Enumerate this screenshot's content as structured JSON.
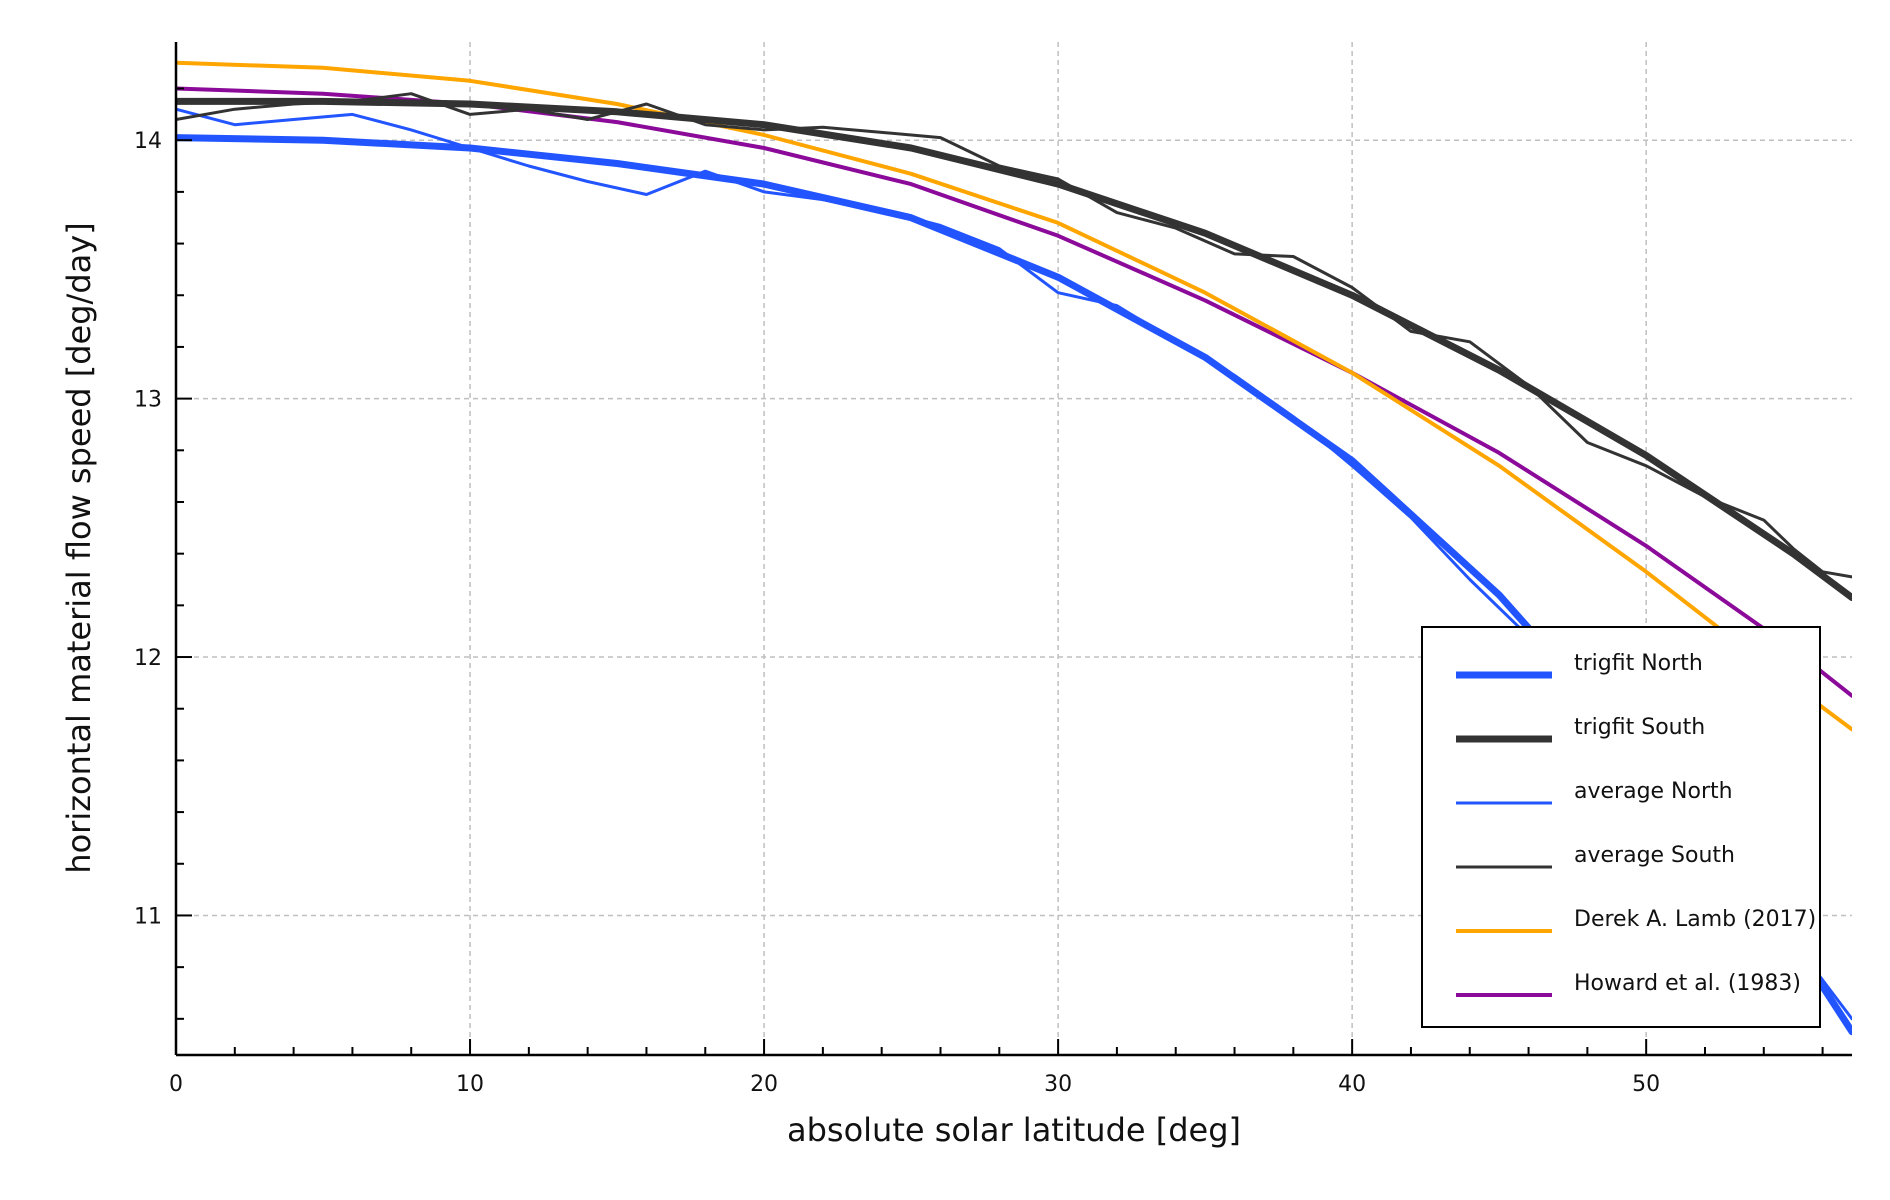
{
  "chart_data": {
    "type": "line",
    "xlabel": "absolute solar latitude [deg]",
    "ylabel": "horizontal material flow speed [deg/day]",
    "xlim": [
      0,
      57
    ],
    "ylim": [
      10.46,
      14.38
    ],
    "xticks": [
      0,
      10,
      20,
      30,
      40,
      50
    ],
    "yticks": [
      11,
      12,
      13,
      14
    ],
    "grid": true,
    "legend_position": "bottom-right",
    "series": [
      {
        "name": "trigfit North",
        "color": "#2255ff",
        "style": "thick",
        "x": [
          0,
          5,
          10,
          15,
          20,
          25,
          30,
          35,
          40,
          45,
          50,
          55,
          57
        ],
        "y": [
          14.01,
          14.0,
          13.97,
          13.91,
          13.83,
          13.7,
          13.47,
          13.16,
          12.76,
          12.24,
          11.6,
          10.9,
          10.55
        ]
      },
      {
        "name": "trigfit South",
        "color": "#333333",
        "style": "thick",
        "x": [
          0,
          5,
          10,
          15,
          20,
          25,
          30,
          35,
          40,
          45,
          50,
          55,
          57
        ],
        "y": [
          14.15,
          14.15,
          14.14,
          14.11,
          14.06,
          13.97,
          13.83,
          13.64,
          13.4,
          13.11,
          12.78,
          12.4,
          12.23
        ]
      },
      {
        "name": "average North",
        "color": "#2255ff",
        "style": "thin",
        "x": [
          0,
          2,
          4,
          6,
          8,
          10,
          12,
          14,
          16,
          18,
          20,
          22,
          24,
          26,
          28,
          30,
          32,
          34,
          36,
          38,
          40,
          42,
          44,
          46,
          50,
          55,
          57
        ],
        "y": [
          14.12,
          14.06,
          14.08,
          14.1,
          14.04,
          13.97,
          13.9,
          13.84,
          13.79,
          13.88,
          13.8,
          13.77,
          13.73,
          13.67,
          13.58,
          13.41,
          13.36,
          13.22,
          13.09,
          12.93,
          12.74,
          12.54,
          12.3,
          12.08,
          11.6,
          10.9,
          10.6
        ]
      },
      {
        "name": "average South",
        "color": "#333333",
        "style": "thin",
        "x": [
          0,
          2,
          4,
          6,
          8,
          10,
          12,
          14,
          16,
          18,
          20,
          22,
          24,
          26,
          28,
          30,
          32,
          34,
          36,
          38,
          40,
          42,
          44,
          46,
          48,
          50,
          52,
          54,
          55,
          56,
          57
        ],
        "y": [
          14.08,
          14.12,
          14.14,
          14.15,
          14.18,
          14.1,
          14.12,
          14.08,
          14.14,
          14.06,
          14.04,
          14.05,
          14.03,
          14.01,
          13.9,
          13.85,
          13.72,
          13.66,
          13.56,
          13.55,
          13.43,
          13.26,
          13.22,
          13.05,
          12.83,
          12.74,
          12.62,
          12.53,
          12.42,
          12.33,
          12.31
        ]
      },
      {
        "name": "Derek A. Lamb (2017)",
        "color": "#ffa500",
        "style": "medium",
        "x": [
          0,
          5,
          10,
          15,
          20,
          25,
          30,
          35,
          40,
          45,
          50,
          55,
          57
        ],
        "y": [
          14.3,
          14.28,
          14.23,
          14.14,
          14.02,
          13.87,
          13.68,
          13.41,
          13.1,
          12.74,
          12.33,
          11.89,
          11.72
        ]
      },
      {
        "name": "Howard et al. (1983)",
        "color": "#8b0a99",
        "style": "medium",
        "x": [
          0,
          5,
          10,
          15,
          20,
          25,
          30,
          35,
          40,
          45,
          50,
          55,
          57
        ],
        "y": [
          14.2,
          14.18,
          14.14,
          14.07,
          13.97,
          13.83,
          13.63,
          13.38,
          13.1,
          12.79,
          12.43,
          12.03,
          11.85
        ]
      }
    ]
  }
}
